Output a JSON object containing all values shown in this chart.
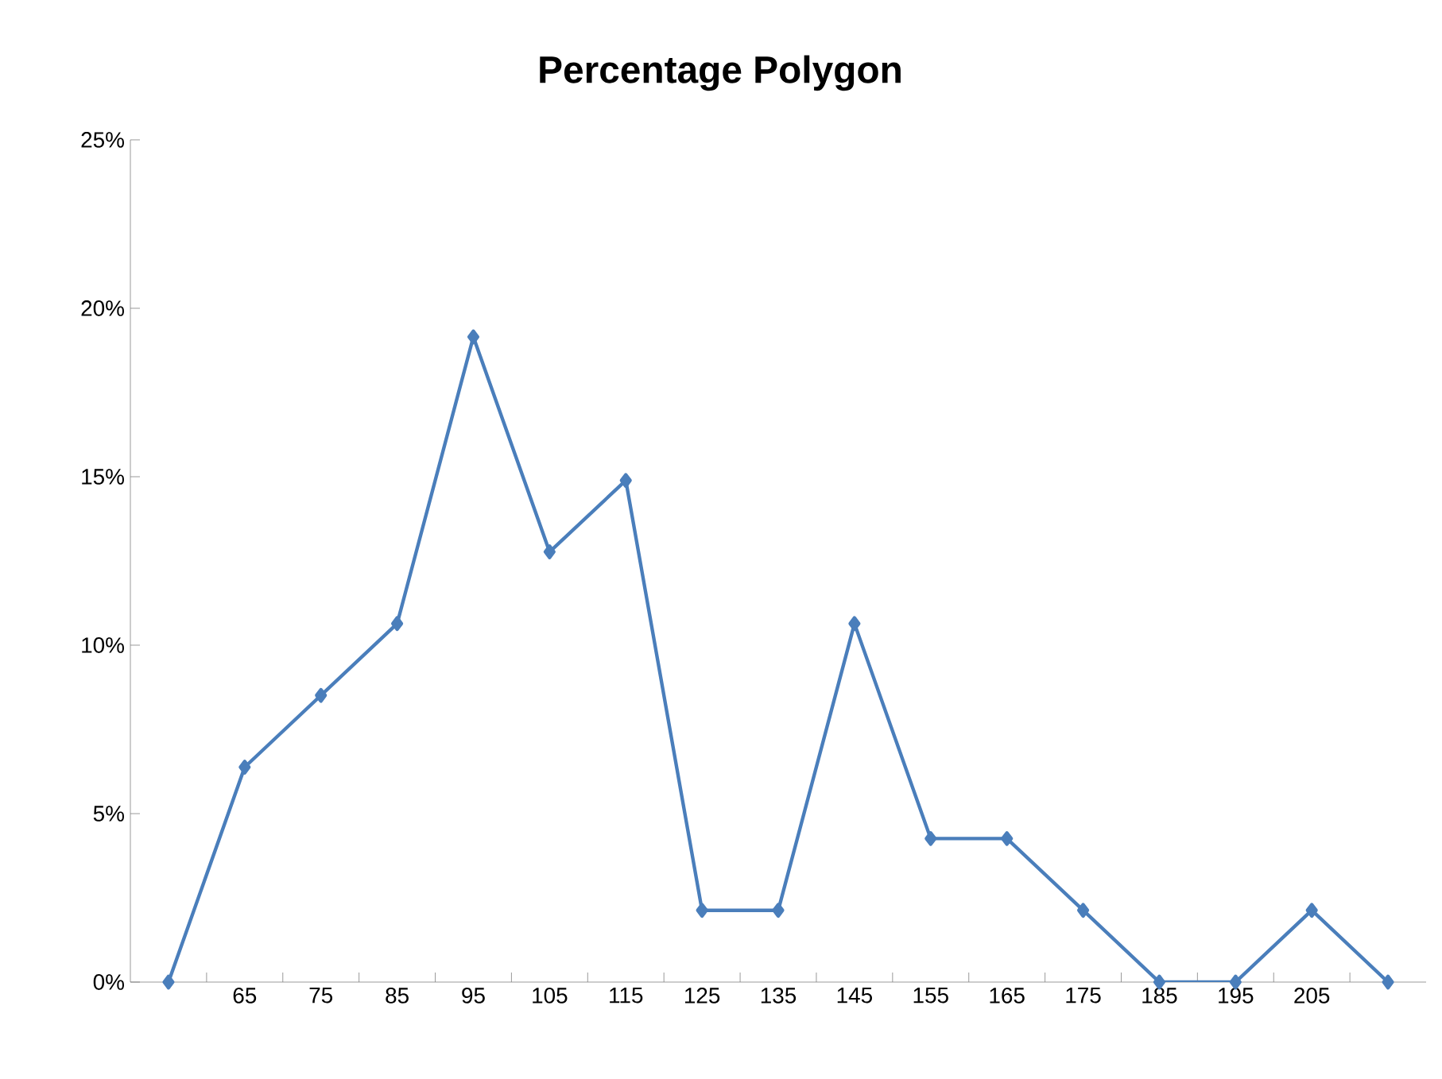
{
  "chart_data": {
    "type": "line",
    "title": "Percentage Polygon",
    "categories": [
      null,
      "65",
      "75",
      "85",
      "95",
      "105",
      "115",
      "125",
      "135",
      "145",
      "155",
      "165",
      "175",
      "185",
      "195",
      "205",
      null
    ],
    "series": [
      {
        "color": "#4a7ebb",
        "values": [
          0,
          6.38,
          8.51,
          10.64,
          19.15,
          12.77,
          14.89,
          2.13,
          2.13,
          10.64,
          4.26,
          4.26,
          2.13,
          0,
          0,
          2.13,
          0
        ]
      }
    ],
    "ylim": [
      0,
      25
    ],
    "yticks": [
      {
        "value": 0,
        "label": "0%"
      },
      {
        "value": 5,
        "label": "5%"
      },
      {
        "value": 10,
        "label": "10%"
      },
      {
        "value": 15,
        "label": "15%"
      },
      {
        "value": 20,
        "label": "20%"
      },
      {
        "value": 25,
        "label": "25%"
      }
    ],
    "marker": "diamond",
    "line_style": "solid",
    "grid": false
  }
}
